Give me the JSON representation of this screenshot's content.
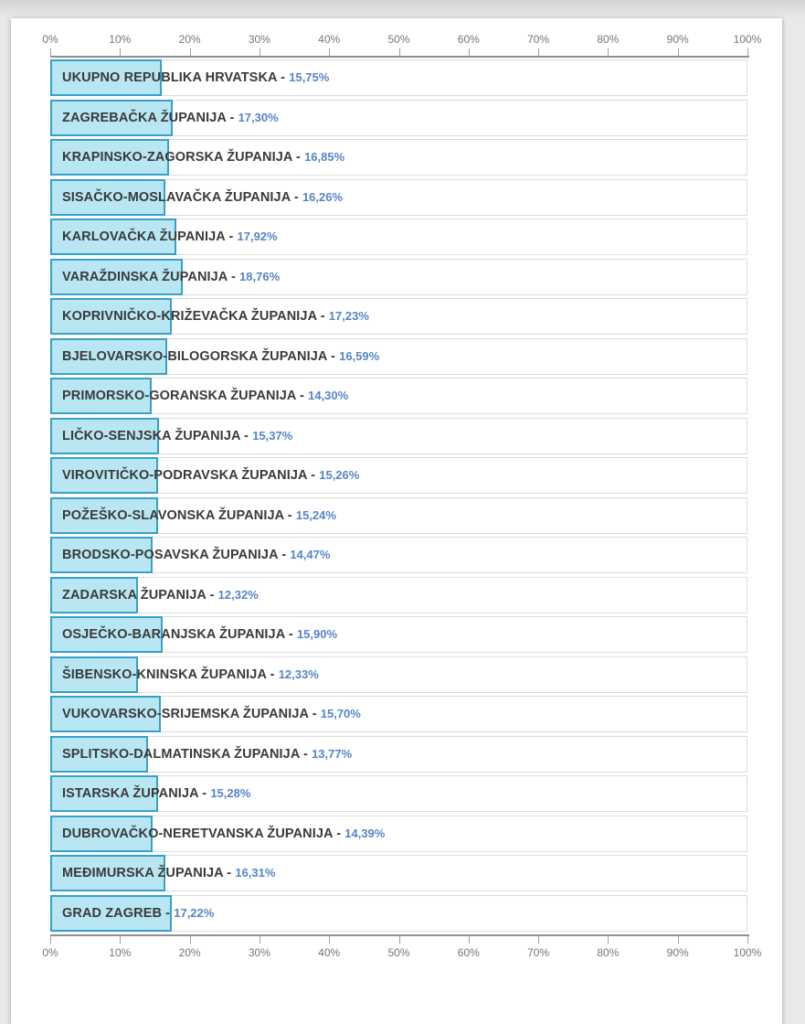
{
  "page": {
    "background_color": "#e9e9e9",
    "card_background_color": "#ffffff"
  },
  "chart_data": {
    "type": "bar",
    "orientation": "horizontal",
    "title": "",
    "xlabel": "",
    "ylabel": "",
    "xlim": [
      0,
      100
    ],
    "grid": false,
    "legend": false,
    "axes_shown": [
      "top",
      "bottom"
    ],
    "axis_tick_labels": [
      "0%",
      "10%",
      "20%",
      "30%",
      "40%",
      "50%",
      "60%",
      "70%",
      "80%",
      "90%",
      "100%"
    ],
    "label_separator": " - ",
    "categories": [
      "UKUPNO REPUBLIKA HRVATSKA",
      "ZAGREBAČKA ŽUPANIJA",
      "KRAPINSKO-ZAGORSKA ŽUPANIJA",
      "SISAČKO-MOSLAVAČKA ŽUPANIJA",
      "KARLOVAČKA ŽUPANIJA",
      "VARAŽDINSKA ŽUPANIJA",
      "KOPRIVNIČKO-KRIŽEVAČKA ŽUPANIJA",
      "BJELOVARSKO-BILOGORSKA ŽUPANIJA",
      "PRIMORSKO-GORANSKA ŽUPANIJA",
      "LIČKO-SENJSKA ŽUPANIJA",
      "VIROVITIČKO-PODRAVSKA ŽUPANIJA",
      "POŽEŠKO-SLAVONSKA ŽUPANIJA",
      "BRODSKO-POSAVSKA ŽUPANIJA",
      "ZADARSKA ŽUPANIJA",
      "OSJEČKO-BARANJSKA ŽUPANIJA",
      "ŠIBENSKO-KNINSKA ŽUPANIJA",
      "VUKOVARSKO-SRIJEMSKA ŽUPANIJA",
      "SPLITSKO-DALMATINSKA ŽUPANIJA",
      "ISTARSKA ŽUPANIJA",
      "DUBROVAČKO-NERETVANSKA ŽUPANIJA",
      "MEĐIMURSKA ŽUPANIJA",
      "GRAD ZAGREB"
    ],
    "values": [
      15.75,
      17.3,
      16.85,
      16.26,
      17.92,
      18.76,
      17.23,
      16.59,
      14.3,
      15.37,
      15.26,
      15.24,
      14.47,
      12.32,
      15.9,
      12.33,
      15.7,
      13.77,
      15.28,
      14.39,
      16.31,
      17.22
    ],
    "value_labels": [
      "15,75%",
      "17,30%",
      "16,85%",
      "16,26%",
      "17,92%",
      "18,76%",
      "17,23%",
      "16,59%",
      "14,30%",
      "15,37%",
      "15,26%",
      "15,24%",
      "14,47%",
      "12,32%",
      "15,90%",
      "12,33%",
      "15,70%",
      "13,77%",
      "15,28%",
      "14,39%",
      "16,31%",
      "17,22%"
    ],
    "colors": {
      "bar_fill": "#b8e7f3",
      "bar_border": "#35a1ca",
      "category_label": "#3a3a3a",
      "value_label": "#5585c7",
      "axis_text": "#757575",
      "axis_line": "#8f8f8f",
      "track_border": "#dcdcdc"
    }
  }
}
